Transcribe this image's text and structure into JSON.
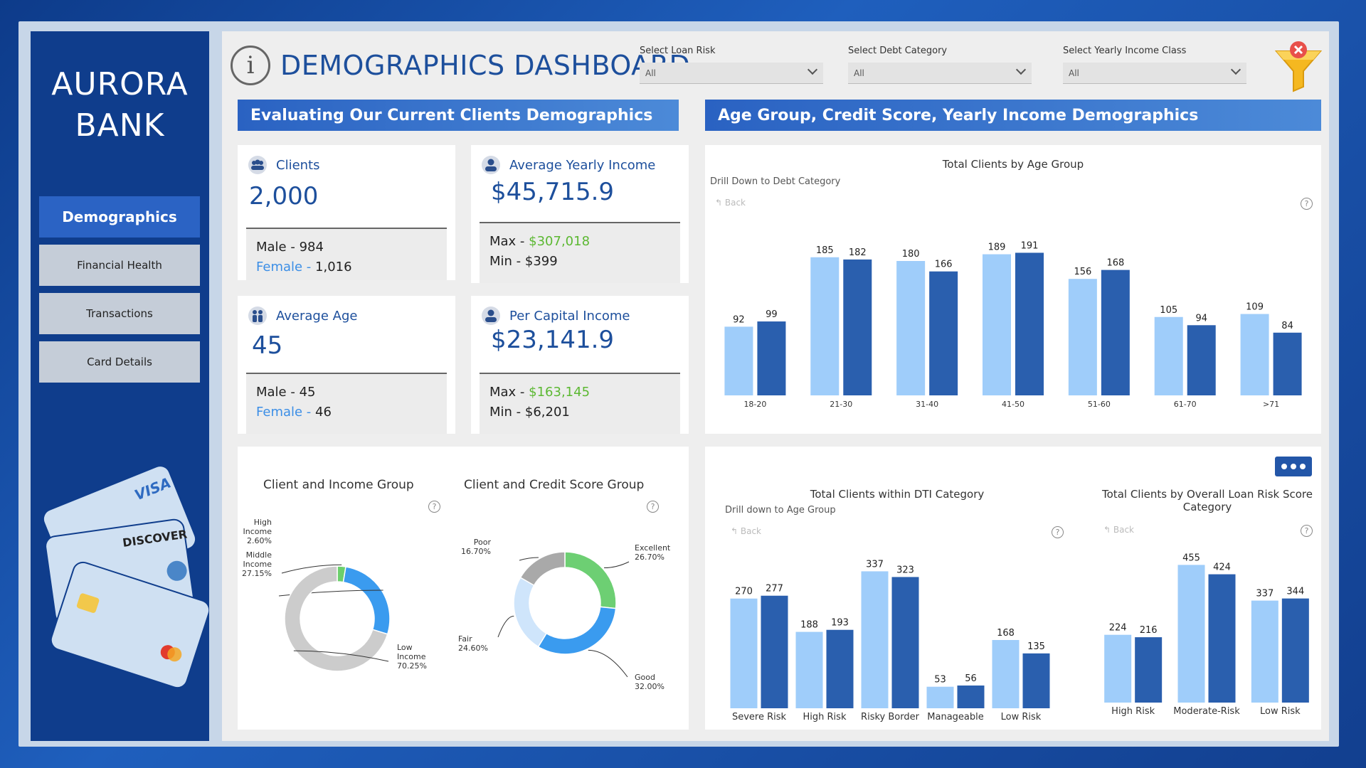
{
  "sidebar": {
    "brand": "AURORA\nBANK",
    "items": [
      {
        "label": "Demographics",
        "active": true
      },
      {
        "label": "Financial Health",
        "active": false
      },
      {
        "label": "Transactions",
        "active": false
      },
      {
        "label": "Card Details",
        "active": false
      }
    ],
    "card_brands": [
      "VISA",
      "DISCOVER"
    ]
  },
  "header": {
    "title": "DEMOGRAPHICS DASHBOARD",
    "info_icon": "info-icon",
    "filters": [
      {
        "label": "Select Loan Risk",
        "value": "All"
      },
      {
        "label": "Select Debt Category",
        "value": "All"
      },
      {
        "label": "Select Yearly Income Class",
        "value": "All"
      }
    ],
    "clear_filter_icon": "funnel-clear-icon"
  },
  "banners": {
    "left": "Evaluating Our  Current Clients Demographics",
    "right": "Age Group, Credit Score, Yearly Income Demographics"
  },
  "kpis": {
    "clients": {
      "title": "Clients",
      "value": "2,000",
      "line1_label": "Male - ",
      "line1_value": "984",
      "line2_label": "Female - ",
      "line2_value": "1,016"
    },
    "avg_income": {
      "title": "Average Yearly Income",
      "value": "$45,715.9",
      "line1_label": "Max - ",
      "line1_value": "$307,018",
      "line2_label": "Min - ",
      "line2_value": "$399"
    },
    "avg_age": {
      "title": "Average Age",
      "value": "45",
      "line1_label": "Male - ",
      "line1_value": "45",
      "line2_label": "Female - ",
      "line2_value": "46"
    },
    "per_capita": {
      "title": "Per Capital Income",
      "value": "$23,141.9",
      "line1_label": "Max - ",
      "line1_value": "$163,145",
      "line2_label": "Min - ",
      "line2_value": "$6,201"
    }
  },
  "age_chart": {
    "drill": "Drill Down to Debt Category",
    "back": "Back"
  },
  "dti_chart": {
    "drill": "Drill down to Age Group",
    "back": "Back"
  },
  "risk_chart": {
    "back": "Back"
  },
  "donuts": {
    "income_title": "Client and Income Group",
    "credit_title": "Client and Credit Score Group"
  },
  "chart_data": [
    {
      "type": "bar",
      "title": "Total Clients by Age Group",
      "categories": [
        "18-20",
        "21-30",
        "31-40",
        "41-50",
        "51-60",
        "61-70",
        ">71"
      ],
      "series": [
        {
          "values": [
            92,
            185,
            180,
            189,
            156,
            105,
            109
          ],
          "color": "#9fcdfa"
        },
        {
          "values": [
            99,
            182,
            166,
            191,
            168,
            94,
            84
          ],
          "color": "#2a5fae"
        }
      ],
      "ylim": [
        0,
        200
      ]
    },
    {
      "type": "bar",
      "title": "Total Clients within DTI Category",
      "categories": [
        "Severe Risk",
        "High Risk",
        "Risky Border",
        "Manageable",
        "Low Risk"
      ],
      "series": [
        {
          "values": [
            270,
            188,
            337,
            53,
            168
          ],
          "color": "#9fcdfa"
        },
        {
          "values": [
            277,
            193,
            323,
            56,
            135
          ],
          "color": "#2a5fae"
        }
      ],
      "ylim": [
        0,
        350
      ]
    },
    {
      "type": "bar",
      "title": "Total Clients by Overall Loan Risk Score Category",
      "categories": [
        "High Risk",
        "Moderate-Risk",
        "Low Risk"
      ],
      "series": [
        {
          "values": [
            224,
            455,
            337
          ],
          "color": "#9fcdfa"
        },
        {
          "values": [
            216,
            424,
            344
          ],
          "color": "#2a5fae"
        }
      ],
      "ylim": [
        0,
        470
      ]
    },
    {
      "type": "pie",
      "title": "Client and Income Group",
      "slices": [
        {
          "label": "High Income",
          "value": 2.6,
          "display": "2.60%",
          "color": "#6ccf6c"
        },
        {
          "label": "Middle Income",
          "value": 27.15,
          "display": "27.15%",
          "color": "#3a9bef"
        },
        {
          "label": "Low Income",
          "value": 70.25,
          "display": "70.25%",
          "color": "#cccccc"
        }
      ]
    },
    {
      "type": "pie",
      "title": "Client and Credit Score Group",
      "slices": [
        {
          "label": "Excellent",
          "value": 26.7,
          "display": "26.70%",
          "color": "#6dcf73"
        },
        {
          "label": "Good",
          "value": 32.0,
          "display": "32.00%",
          "color": "#3a9bef"
        },
        {
          "label": "Fair",
          "value": 24.6,
          "display": "24.60%",
          "color": "#cfe5fb"
        },
        {
          "label": "Poor",
          "value": 16.7,
          "display": "16.70%",
          "color": "#a9a9a9"
        }
      ]
    }
  ]
}
